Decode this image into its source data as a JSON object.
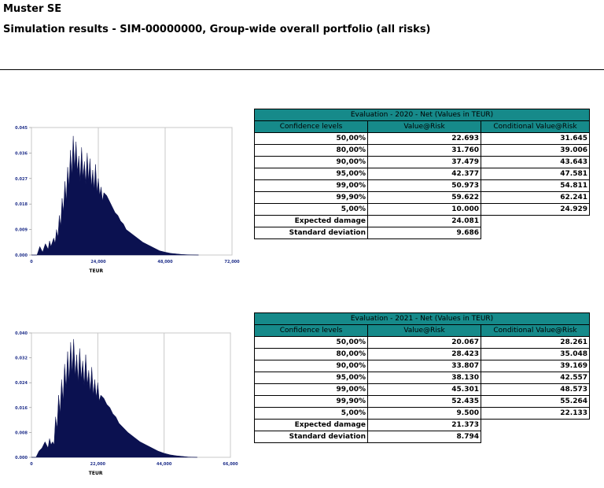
{
  "header": {
    "company": "Muster SE",
    "subtitle": "Simulation results - SIM-00000000, Group-wide overall portfolio (all risks)"
  },
  "sections": [
    {
      "table": {
        "caption": "Evaluation - 2020 - Net (Values in TEUR)",
        "columns": [
          "Confidence levels",
          "Value@Risk",
          "Conditional Value@Risk"
        ],
        "rows": [
          {
            "level": "50,00%",
            "var": "22.693",
            "cvar": "31.645"
          },
          {
            "level": "80,00%",
            "var": "31.760",
            "cvar": "39.006"
          },
          {
            "level": "90,00%",
            "var": "37.479",
            "cvar": "43.643"
          },
          {
            "level": "95,00%",
            "var": "42.377",
            "cvar": "47.581"
          },
          {
            "level": "99,00%",
            "var": "50.973",
            "cvar": "54.811"
          },
          {
            "level": "99,90%",
            "var": "59.622",
            "cvar": "62.241"
          },
          {
            "level": "5,00%",
            "var": "10.000",
            "cvar": "24.929"
          }
        ],
        "expected_label": "Expected damage",
        "expected_value": "24.081",
        "std_label": "Standard deviation",
        "std_value": "9.686"
      }
    },
    {
      "table": {
        "caption": "Evaluation - 2021 - Net (Values in TEUR)",
        "columns": [
          "Confidence levels",
          "Value@Risk",
          "Conditional Value@Risk"
        ],
        "rows": [
          {
            "level": "50,00%",
            "var": "20.067",
            "cvar": "28.261"
          },
          {
            "level": "80,00%",
            "var": "28.423",
            "cvar": "35.048"
          },
          {
            "level": "90,00%",
            "var": "33.807",
            "cvar": "39.169"
          },
          {
            "level": "95,00%",
            "var": "38.130",
            "cvar": "42.557"
          },
          {
            "level": "99,00%",
            "var": "45.301",
            "cvar": "48.573"
          },
          {
            "level": "99,90%",
            "var": "52.435",
            "cvar": "55.264"
          },
          {
            "level": "5,00%",
            "var": "9.500",
            "cvar": "22.133"
          }
        ],
        "expected_label": "Expected damage",
        "expected_value": "21.373",
        "std_label": "Standard deviation",
        "std_value": "8.794"
      }
    }
  ],
  "chart_data": [
    {
      "type": "area",
      "xlabel": "TEUR",
      "ylabel": "",
      "xlim": [
        0,
        72000
      ],
      "ylim": [
        0,
        0.045
      ],
      "x_ticks": [
        "0",
        "24,000",
        "48,000",
        "72,000"
      ],
      "y_ticks": [
        "0.000",
        "0.009",
        "0.018",
        "0.027",
        "0.036",
        "0.045"
      ],
      "color": "#0b1150",
      "grid": "vertical",
      "series": [
        {
          "x": [
            0,
            2000,
            3000,
            4000,
            5000,
            6000,
            6500,
            7000,
            8000,
            8500,
            9000,
            9500,
            10000,
            10500,
            11000,
            11500,
            12000,
            12500,
            13000,
            13500,
            14000,
            14500,
            15000,
            15500,
            16000,
            16500,
            17000,
            17500,
            18000,
            18500,
            19000,
            19500,
            20000,
            20500,
            21000,
            21500,
            22000,
            22500,
            23000,
            23500,
            24000,
            24500,
            25000,
            25500,
            26000,
            27000,
            28000,
            29000,
            30000,
            31000,
            32000,
            33000,
            34000,
            36000,
            38000,
            40000,
            42000,
            44000,
            46000,
            48000,
            50000,
            52000,
            54000,
            56000,
            60000
          ],
          "values": [
            0,
            0.0,
            0.003,
            0.001,
            0.004,
            0.002,
            0.005,
            0.003,
            0.006,
            0.004,
            0.009,
            0.006,
            0.014,
            0.01,
            0.02,
            0.015,
            0.026,
            0.019,
            0.031,
            0.024,
            0.037,
            0.028,
            0.042,
            0.03,
            0.04,
            0.029,
            0.035,
            0.026,
            0.038,
            0.027,
            0.033,
            0.025,
            0.036,
            0.026,
            0.034,
            0.024,
            0.03,
            0.023,
            0.032,
            0.022,
            0.027,
            0.021,
            0.024,
            0.019,
            0.022,
            0.021,
            0.019,
            0.017,
            0.015,
            0.014,
            0.012,
            0.011,
            0.009,
            0.0075,
            0.006,
            0.0045,
            0.0035,
            0.0025,
            0.0015,
            0.001,
            0.0006,
            0.0004,
            0.0002,
            0.0001,
            0
          ]
        }
      ]
    },
    {
      "type": "area",
      "xlabel": "TEUR",
      "ylabel": "",
      "xlim": [
        0,
        66000
      ],
      "ylim": [
        0,
        0.04
      ],
      "x_ticks": [
        "0",
        "22,000",
        "44,000",
        "66,000"
      ],
      "y_ticks": [
        "0.000",
        "0.008",
        "0.016",
        "0.024",
        "0.032",
        "0.040"
      ],
      "color": "#0b1150",
      "grid": "vertical",
      "series": [
        {
          "x": [
            0,
            1500,
            2500,
            3500,
            4500,
            5500,
            6000,
            6500,
            7000,
            7500,
            8000,
            8500,
            9000,
            9500,
            10000,
            10500,
            11000,
            11500,
            12000,
            12500,
            13000,
            13500,
            14000,
            14500,
            15000,
            15500,
            16000,
            16500,
            17000,
            17500,
            18000,
            18500,
            19000,
            19500,
            20000,
            20500,
            21000,
            21500,
            22000,
            22500,
            23000,
            24000,
            25000,
            26000,
            27000,
            28000,
            29000,
            30000,
            32000,
            34000,
            36000,
            38000,
            40000,
            42000,
            44000,
            46000,
            48000,
            50000,
            52000,
            55000
          ],
          "values": [
            0,
            0.0,
            0.002,
            0.003,
            0.005,
            0.003,
            0.006,
            0.004,
            0.005,
            0.004,
            0.013,
            0.009,
            0.02,
            0.014,
            0.025,
            0.018,
            0.03,
            0.022,
            0.034,
            0.024,
            0.037,
            0.027,
            0.038,
            0.026,
            0.033,
            0.024,
            0.035,
            0.025,
            0.031,
            0.023,
            0.033,
            0.023,
            0.028,
            0.021,
            0.029,
            0.02,
            0.025,
            0.019,
            0.024,
            0.018,
            0.02,
            0.019,
            0.017,
            0.016,
            0.014,
            0.013,
            0.011,
            0.01,
            0.008,
            0.0065,
            0.005,
            0.004,
            0.003,
            0.002,
            0.0013,
            0.0008,
            0.0005,
            0.0003,
            0.0001,
            0
          ]
        }
      ]
    }
  ]
}
